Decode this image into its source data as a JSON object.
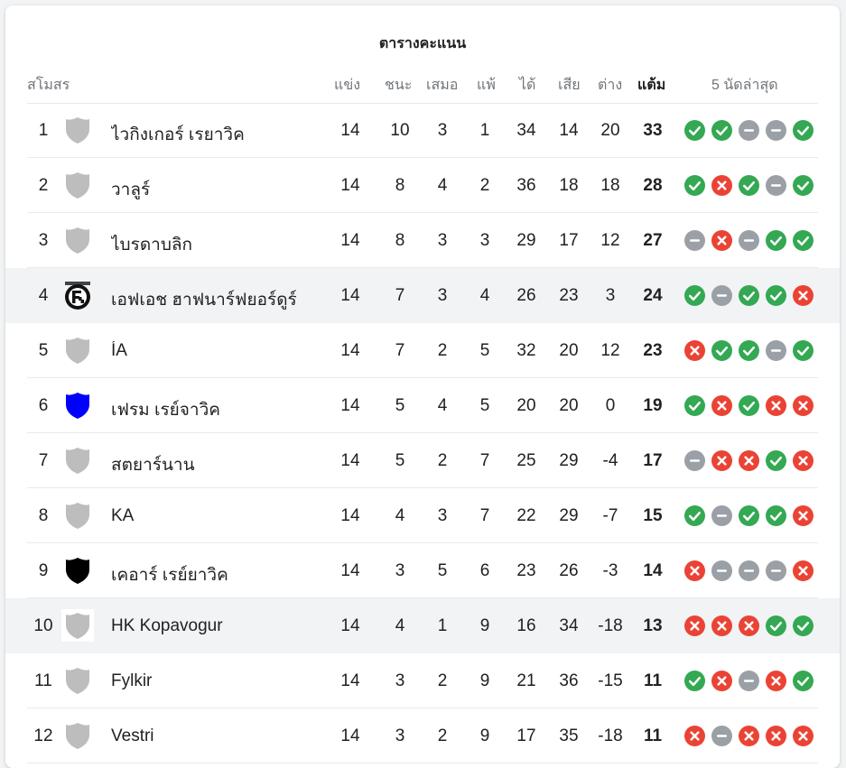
{
  "title": "ตารางคะแนน",
  "headers": {
    "club": "สโมสร",
    "played": "แข่ง",
    "won": "ชนะ",
    "drawn": "เสมอ",
    "lost": "แพ้",
    "goals_for": "ได้",
    "goals_against": "เสีย",
    "goal_diff": "ต่าง",
    "points": "แต้ม",
    "last5": "5 นัดล่าสุด"
  },
  "colors": {
    "win": "#34a853",
    "loss": "#ea4335",
    "draw": "#9aa0a6",
    "highlight_row": "#f1f3f4"
  },
  "form_legend": {
    "W": "check-icon",
    "L": "cross-icon",
    "D": "dash-icon"
  },
  "teams": [
    {
      "pos": "1",
      "name": "ไวกิงเกอร์ เรยาวิค",
      "crest": "gray-shield-icon",
      "crest_color": "#bdbdbd",
      "played": "14",
      "won": "10",
      "drawn": "3",
      "lost": "1",
      "gf": "34",
      "ga": "14",
      "gd": "20",
      "pts": "33",
      "form": [
        "W",
        "W",
        "D",
        "D",
        "W"
      ],
      "highlight": false
    },
    {
      "pos": "2",
      "name": "วาลูร์",
      "crest": "gray-shield-icon",
      "crest_color": "#bdbdbd",
      "played": "14",
      "won": "8",
      "drawn": "4",
      "lost": "2",
      "gf": "36",
      "ga": "18",
      "gd": "18",
      "pts": "28",
      "form": [
        "W",
        "L",
        "W",
        "D",
        "W"
      ],
      "highlight": false
    },
    {
      "pos": "3",
      "name": "ไบรดาบลิก",
      "crest": "gray-shield-icon",
      "crest_color": "#bdbdbd",
      "played": "14",
      "won": "8",
      "drawn": "3",
      "lost": "3",
      "gf": "29",
      "ga": "17",
      "gd": "12",
      "pts": "27",
      "form": [
        "D",
        "L",
        "D",
        "W",
        "W"
      ],
      "highlight": false
    },
    {
      "pos": "4",
      "name": "เอฟเอช ฮาฟนาร์ฟยอร์ดูร์",
      "crest": "fh-logo-icon",
      "crest_color": "#000000",
      "played": "14",
      "won": "7",
      "drawn": "3",
      "lost": "4",
      "gf": "26",
      "ga": "23",
      "gd": "3",
      "pts": "24",
      "form": [
        "W",
        "D",
        "W",
        "W",
        "L"
      ],
      "highlight": true
    },
    {
      "pos": "5",
      "name": "ÍA",
      "crest": "gray-shield-icon",
      "crest_color": "#bdbdbd",
      "played": "14",
      "won": "7",
      "drawn": "2",
      "lost": "5",
      "gf": "32",
      "ga": "20",
      "gd": "12",
      "pts": "23",
      "form": [
        "L",
        "W",
        "W",
        "D",
        "W"
      ],
      "highlight": false
    },
    {
      "pos": "6",
      "name": "เฟรม เรย์จาวิค",
      "crest": "blue-shield-icon",
      "crest_color": "#0000ff",
      "played": "14",
      "won": "5",
      "drawn": "4",
      "lost": "5",
      "gf": "20",
      "ga": "20",
      "gd": "0",
      "pts": "19",
      "form": [
        "W",
        "L",
        "W",
        "L",
        "L"
      ],
      "highlight": false
    },
    {
      "pos": "7",
      "name": "สตยาร์นาน",
      "crest": "gray-shield-icon",
      "crest_color": "#bdbdbd",
      "played": "14",
      "won": "5",
      "drawn": "2",
      "lost": "7",
      "gf": "25",
      "ga": "29",
      "gd": "-4",
      "pts": "17",
      "form": [
        "D",
        "L",
        "L",
        "W",
        "L"
      ],
      "highlight": false
    },
    {
      "pos": "8",
      "name": "KA",
      "crest": "gray-shield-icon",
      "crest_color": "#bdbdbd",
      "played": "14",
      "won": "4",
      "drawn": "3",
      "lost": "7",
      "gf": "22",
      "ga": "29",
      "gd": "-7",
      "pts": "15",
      "form": [
        "W",
        "D",
        "W",
        "W",
        "L"
      ],
      "highlight": false
    },
    {
      "pos": "9",
      "name": "เคอาร์ เรย์ยาวิค",
      "crest": "black-shield-icon",
      "crest_color": "#000000",
      "played": "14",
      "won": "3",
      "drawn": "5",
      "lost": "6",
      "gf": "23",
      "ga": "26",
      "gd": "-3",
      "pts": "14",
      "form": [
        "L",
        "D",
        "D",
        "D",
        "L"
      ],
      "highlight": false
    },
    {
      "pos": "10",
      "name": "HK Kopavogur",
      "crest": "gray-shield-icon",
      "crest_color": "#bdbdbd",
      "played": "14",
      "won": "4",
      "drawn": "1",
      "lost": "9",
      "gf": "16",
      "ga": "34",
      "gd": "-18",
      "pts": "13",
      "form": [
        "L",
        "L",
        "L",
        "W",
        "W"
      ],
      "highlight": true
    },
    {
      "pos": "11",
      "name": "Fylkir",
      "crest": "gray-shield-icon",
      "crest_color": "#bdbdbd",
      "played": "14",
      "won": "3",
      "drawn": "2",
      "lost": "9",
      "gf": "21",
      "ga": "36",
      "gd": "-15",
      "pts": "11",
      "form": [
        "W",
        "L",
        "D",
        "L",
        "W"
      ],
      "highlight": false
    },
    {
      "pos": "12",
      "name": "Vestri",
      "crest": "gray-shield-icon",
      "crest_color": "#bdbdbd",
      "played": "14",
      "won": "3",
      "drawn": "2",
      "lost": "9",
      "gf": "17",
      "ga": "35",
      "gd": "-18",
      "pts": "11",
      "form": [
        "L",
        "D",
        "L",
        "L",
        "L"
      ],
      "highlight": false
    }
  ]
}
